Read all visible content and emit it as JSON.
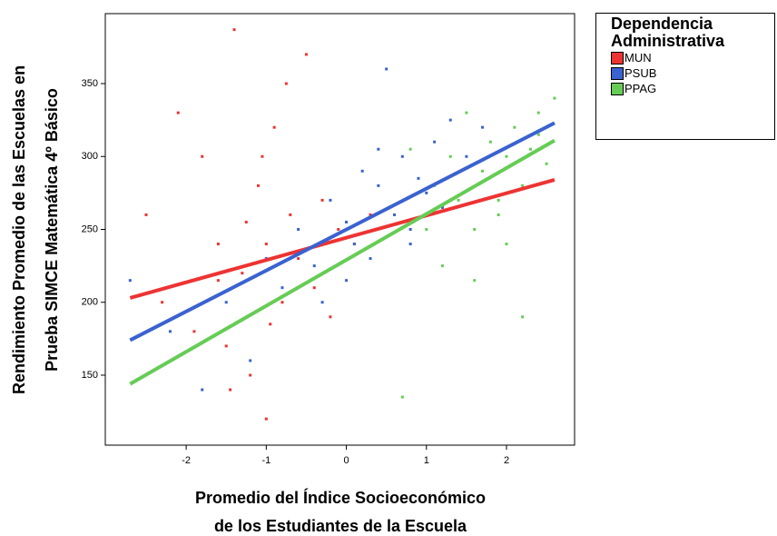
{
  "chart_data": {
    "type": "scatter",
    "y_label": [
      "Rendimiento Promedio de las Escuelas en",
      "Prueba SIMCE Matemática 4º Básico"
    ],
    "x_label": [
      "Promedio del Índice Socioeconómico",
      "de los Estudiantes de la Escuela"
    ],
    "legend_title": "Dependencia Administrativa",
    "xlim": [
      -3.01,
      2.85
    ],
    "ylim": [
      102,
      398
    ],
    "xticks": [
      -2,
      -1,
      0,
      1,
      2
    ],
    "yticks": [
      150,
      200,
      250,
      300,
      350
    ],
    "series": [
      {
        "name": "MUN",
        "color": "#ee3333",
        "x": [
          -2.5,
          -2.3,
          -2.1,
          -1.9,
          -1.8,
          -1.6,
          -1.5,
          -1.4,
          -1.3,
          -1.2,
          -1.1,
          -1.0,
          -1.0,
          -0.9,
          -0.8,
          -0.7,
          -0.6,
          -0.5,
          -0.4,
          -0.3,
          -0.2,
          -0.1,
          0.1,
          0.3,
          -1.45,
          -0.75,
          -1.05,
          -1.6,
          -0.95,
          -1.25
        ],
        "values": [
          260,
          200,
          330,
          180,
          300,
          240,
          170,
          387,
          220,
          150,
          280,
          120,
          240,
          320,
          200,
          260,
          230,
          370,
          210,
          270,
          190,
          250,
          240,
          260,
          140,
          350,
          300,
          215,
          185,
          255
        ],
        "fit_x": [
          -2.7,
          2.6
        ],
        "fit_y": [
          203,
          284
        ]
      },
      {
        "name": "PSUB",
        "color": "#3a62d0",
        "x": [
          -2.7,
          -2.2,
          -1.8,
          -1.5,
          -1.2,
          -1.0,
          -0.8,
          -0.6,
          -0.4,
          -0.2,
          0,
          0.1,
          0.2,
          0.3,
          0.4,
          0.5,
          0.6,
          0.7,
          0.8,
          0.9,
          1.0,
          1.1,
          1.2,
          1.3,
          1.5,
          1.7,
          -0.3,
          0.0,
          0.4,
          0.8
        ],
        "values": [
          215,
          180,
          140,
          200,
          160,
          230,
          210,
          250,
          225,
          270,
          255,
          240,
          290,
          230,
          280,
          360,
          260,
          300,
          250,
          285,
          275,
          310,
          265,
          325,
          300,
          320,
          200,
          215,
          305,
          240
        ],
        "fit_x": [
          -2.7,
          2.6
        ],
        "fit_y": [
          174,
          323
        ]
      },
      {
        "name": "PPAG",
        "color": "#66cc55",
        "x": [
          1.0,
          1.2,
          1.3,
          1.4,
          1.5,
          1.6,
          1.7,
          1.8,
          1.9,
          2.0,
          2.1,
          2.2,
          2.3,
          2.4,
          2.5,
          2.6,
          0.7,
          1.1,
          1.6,
          2.0,
          2.2,
          2.4,
          0.8,
          1.9,
          2.5
        ],
        "values": [
          250,
          225,
          300,
          270,
          330,
          215,
          290,
          310,
          260,
          300,
          320,
          280,
          305,
          330,
          295,
          340,
          135,
          280,
          250,
          240,
          190,
          315,
          305,
          270,
          320
        ],
        "fit_x": [
          -2.7,
          2.6
        ],
        "fit_y": [
          144,
          311
        ]
      }
    ]
  }
}
